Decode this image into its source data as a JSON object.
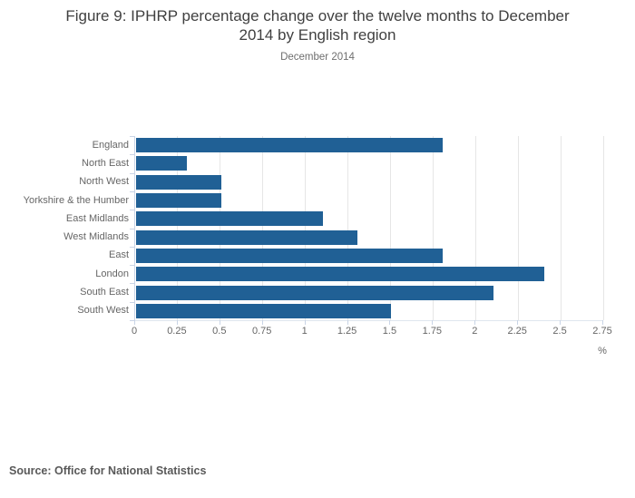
{
  "header": {
    "title_line1": "Figure 9: IPHRP percentage change over the twelve months to December",
    "title_line2": "2014 by English region",
    "subtitle": "December 2014"
  },
  "footer": {
    "source": "Source: Office for National Statistics"
  },
  "colors": {
    "bar": "#206095",
    "axis_line": "#c9d4e6",
    "gridline": "#e6e6e6",
    "title_text": "#404040",
    "subtitle_text": "#6e6e6e",
    "axis_label_text": "#666666",
    "source_text": "#595959"
  },
  "chart_data": {
    "type": "bar",
    "orientation": "horizontal",
    "title": "Figure 9: IPHRP percentage change over the twelve months to December 2014 by English region",
    "subtitle": "December 2014",
    "categories": [
      "England",
      "North East",
      "North West",
      "Yorkshire & the Humber",
      "East Midlands",
      "West Midlands",
      "East",
      "London",
      "South East",
      "South West"
    ],
    "values": [
      1.8,
      0.3,
      0.5,
      0.5,
      1.1,
      1.3,
      1.8,
      2.4,
      2.1,
      1.5
    ],
    "xlabel": "%",
    "ylabel": "",
    "xlim": [
      0,
      2.75
    ],
    "xticks": [
      0,
      0.25,
      0.5,
      0.75,
      1,
      1.25,
      1.5,
      1.75,
      2,
      2.25,
      2.5,
      2.75
    ],
    "grid": "vertical",
    "legend": "none"
  }
}
